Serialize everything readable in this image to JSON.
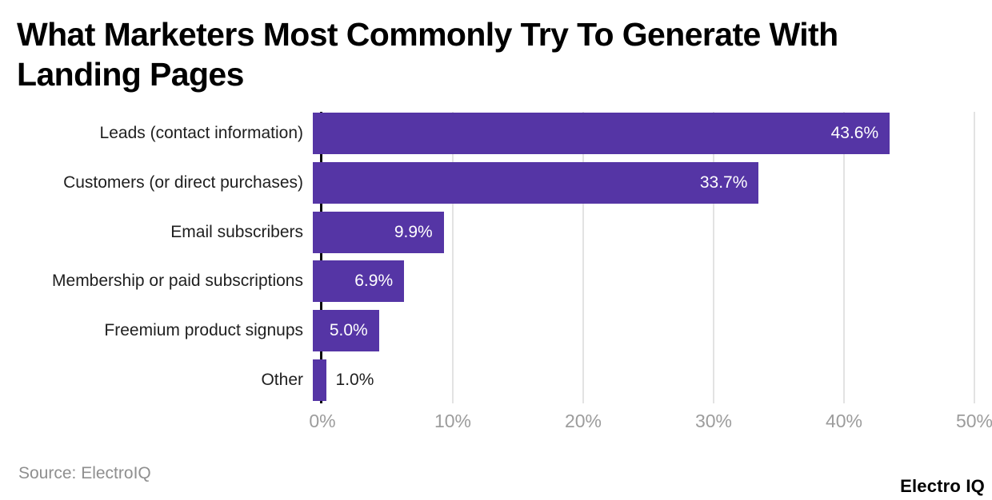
{
  "page": {
    "background": "#ffffff"
  },
  "title": {
    "lines": [
      "What Marketers Most Commonly Try To Generate With",
      "Landing Pages"
    ]
  },
  "chart_data": {
    "type": "bar",
    "orientation": "horizontal",
    "title": "What Marketers Most Commonly Try To Generate With Landing Pages",
    "categories": [
      "Leads (contact information)",
      "Customers (or direct purchases)",
      "Email subscribers",
      "Membership or paid subscriptions",
      "Freemium product signups",
      "Other"
    ],
    "values": [
      43.6,
      33.7,
      9.9,
      6.9,
      5.0,
      1.0
    ],
    "value_labels": [
      "43.6%",
      "33.7%",
      "9.9%",
      "6.9%",
      "5.0%",
      "1.0%"
    ],
    "xlim": [
      0,
      50
    ],
    "x_tick_values": [
      0,
      10,
      20,
      30,
      40,
      50
    ],
    "x_tick_labels": [
      "0%",
      "10%",
      "20%",
      "30%",
      "40%",
      "50%"
    ],
    "grid": true,
    "legend": false,
    "label_outside_below": 3,
    "colors": {
      "bar": "#5535a5",
      "value_label_inside": "#ffffff",
      "value_label_outside": "#1f1f1f",
      "gridline": "#e3e3e3",
      "axis_line": "#0d0d0d",
      "tick_label": "#9c9c9c",
      "category_label": "#1f1f1f"
    }
  },
  "footer": {
    "source": "Source: ElectroIQ",
    "brand": "Electro IQ"
  }
}
